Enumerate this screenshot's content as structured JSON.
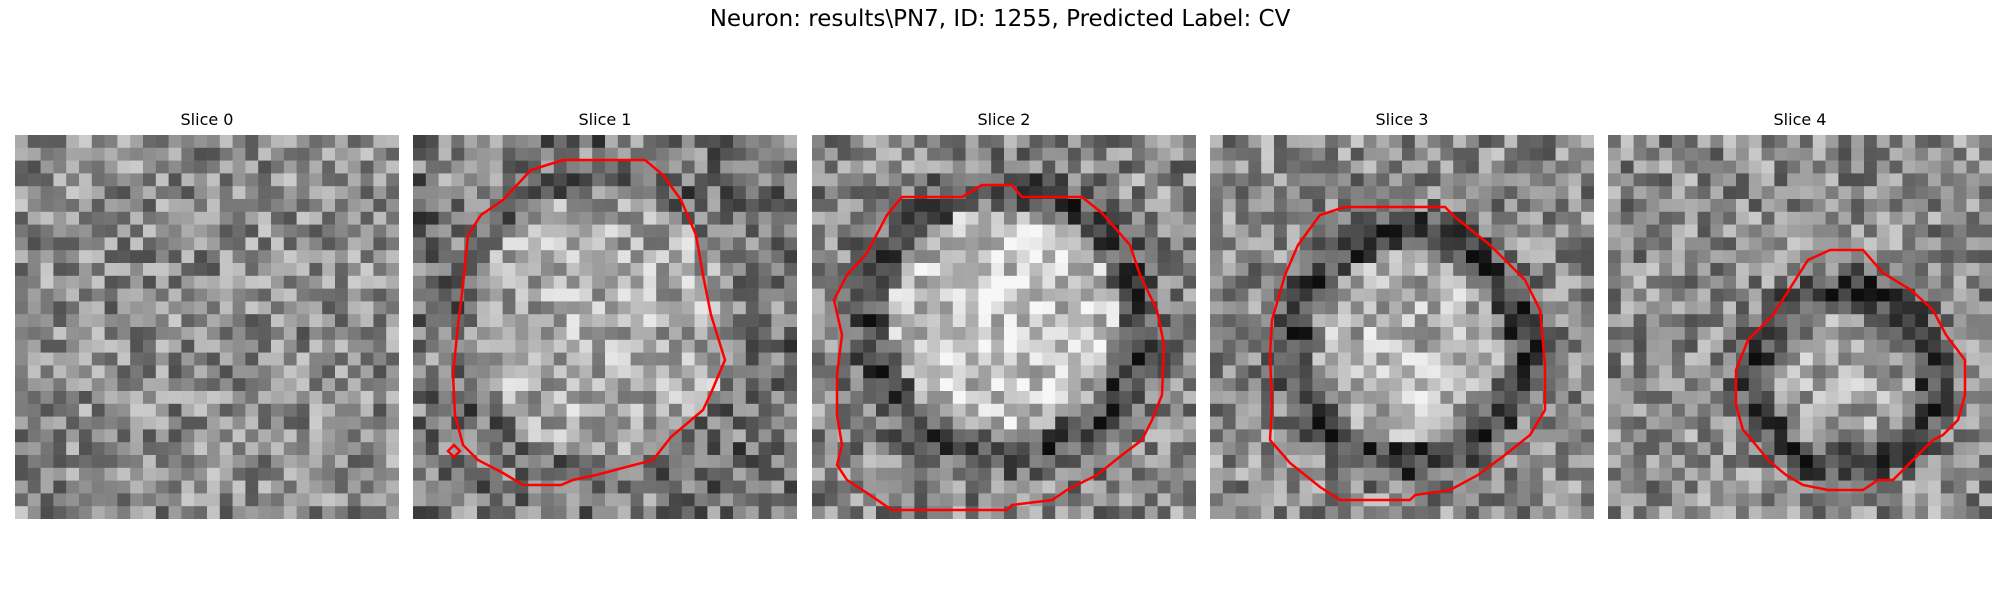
{
  "figure": {
    "title": "Neuron: results\\PN7, ID: 1255, Predicted Label: CV"
  },
  "colors": {
    "contour": "#ff0000",
    "background": "#ffffff"
  },
  "panels": [
    {
      "title": "Slice 0",
      "has_contour": false
    },
    {
      "title": "Slice 1",
      "has_contour": true
    },
    {
      "title": "Slice 2",
      "has_contour": true
    },
    {
      "title": "Slice 3",
      "has_contour": true
    },
    {
      "title": "Slice 4",
      "has_contour": true
    }
  ]
}
